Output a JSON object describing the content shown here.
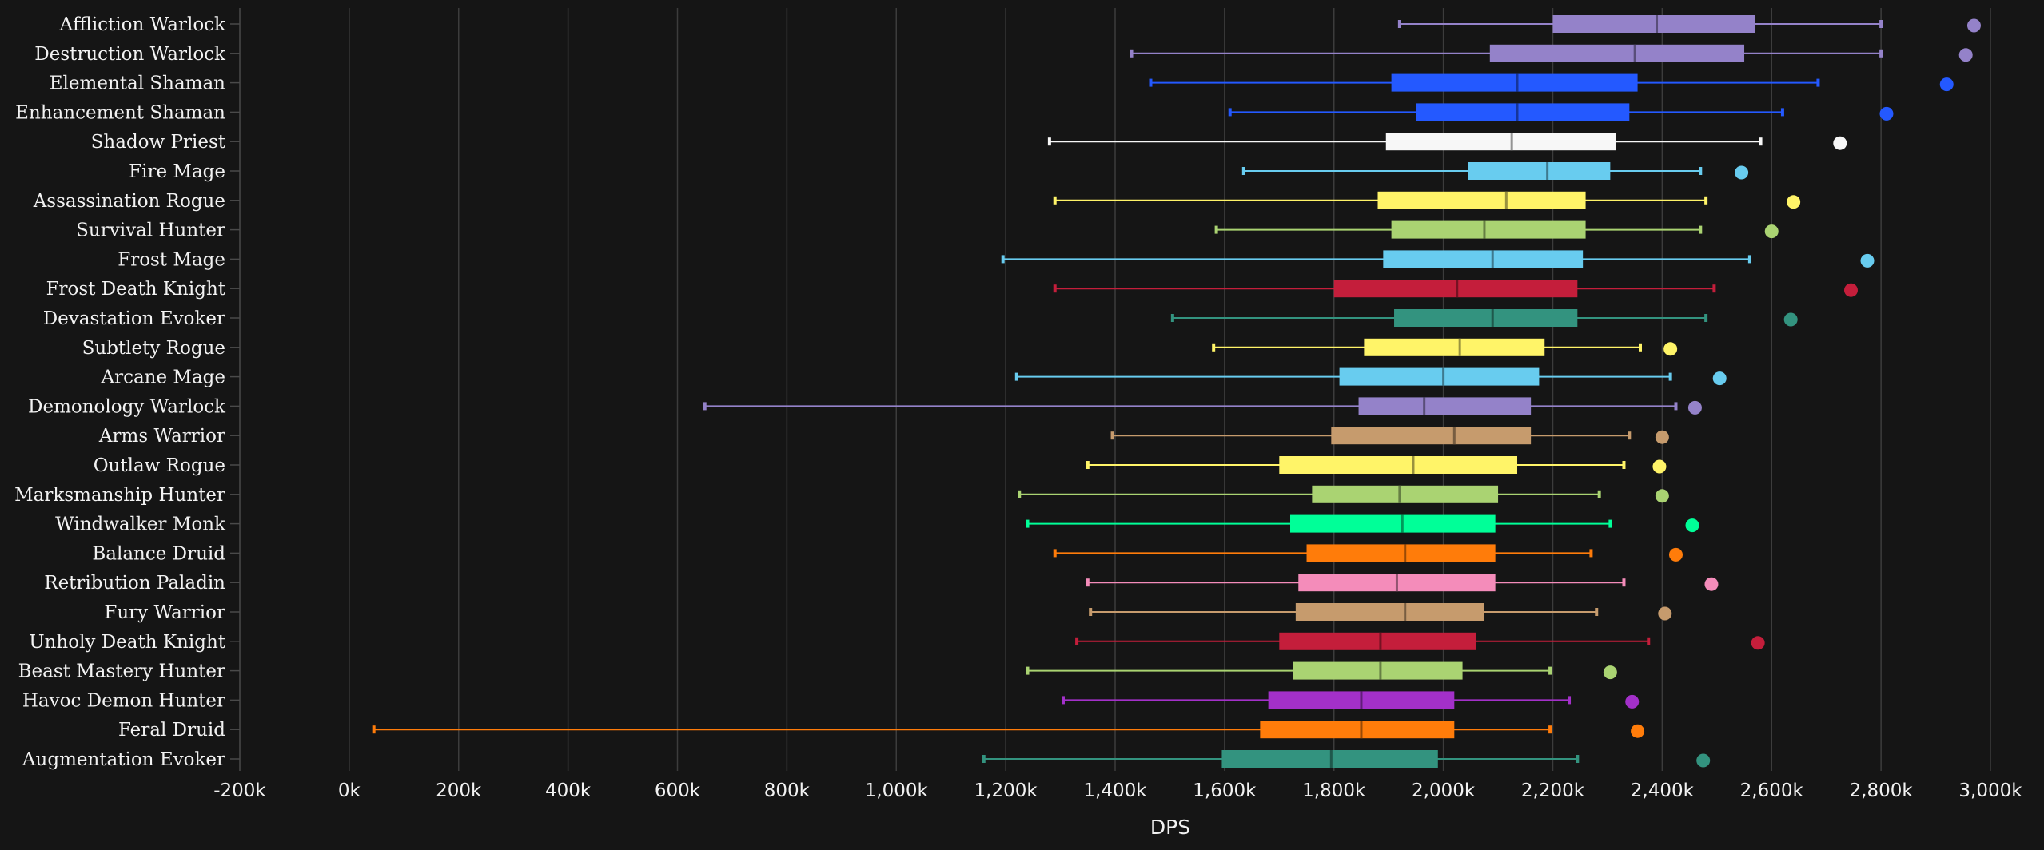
{
  "chart_data": {
    "type": "boxplot",
    "xlabel": "DPS",
    "xlim": [
      -200000,
      3000000
    ],
    "x_ticks": [
      -200000,
      0,
      200000,
      400000,
      600000,
      800000,
      1000000,
      1200000,
      1400000,
      1600000,
      1800000,
      2000000,
      2200000,
      2400000,
      2600000,
      2800000,
      3000000
    ],
    "x_tick_labels": [
      "-200k",
      "0k",
      "200k",
      "400k",
      "600k",
      "800k",
      "1,000k",
      "1,200k",
      "1,400k",
      "1,600k",
      "1,800k",
      "2,000k",
      "2,200k",
      "2,400k",
      "2,600k",
      "2,800k",
      "3,000k"
    ],
    "grid": true,
    "series": [
      {
        "name": "Affliction Warlock",
        "color": "#9482c9",
        "min": 1920000,
        "q1": 2200000,
        "median": 2390000,
        "q3": 2570000,
        "max": 2800000,
        "outlier": 2970000
      },
      {
        "name": "Destruction Warlock",
        "color": "#9482c9",
        "min": 1430000,
        "q1": 2085000,
        "median": 2350000,
        "q3": 2550000,
        "max": 2800000,
        "outlier": 2955000
      },
      {
        "name": "Elemental Shaman",
        "color": "#2459ff",
        "min": 1465000,
        "q1": 1905000,
        "median": 2135000,
        "q3": 2355000,
        "max": 2685000,
        "outlier": 2920000
      },
      {
        "name": "Enhancement Shaman",
        "color": "#2459ff",
        "min": 1610000,
        "q1": 1950000,
        "median": 2135000,
        "q3": 2340000,
        "max": 2620000,
        "outlier": 2810000
      },
      {
        "name": "Shadow Priest",
        "color": "#f7f7f7",
        "min": 1280000,
        "q1": 1895000,
        "median": 2125000,
        "q3": 2315000,
        "max": 2580000,
        "outlier": 2725000
      },
      {
        "name": "Fire Mage",
        "color": "#68ccef",
        "min": 1635000,
        "q1": 2045000,
        "median": 2190000,
        "q3": 2305000,
        "max": 2470000,
        "outlier": 2545000
      },
      {
        "name": "Assassination Rogue",
        "color": "#fff468",
        "min": 1290000,
        "q1": 1880000,
        "median": 2115000,
        "q3": 2260000,
        "max": 2480000,
        "outlier": 2640000
      },
      {
        "name": "Survival Hunter",
        "color": "#aad372",
        "min": 1585000,
        "q1": 1905000,
        "median": 2075000,
        "q3": 2260000,
        "max": 2470000,
        "outlier": 2600000
      },
      {
        "name": "Frost Mage",
        "color": "#68ccef",
        "min": 1195000,
        "q1": 1890000,
        "median": 2090000,
        "q3": 2255000,
        "max": 2560000,
        "outlier": 2775000
      },
      {
        "name": "Frost Death Knight",
        "color": "#c41e3b",
        "min": 1290000,
        "q1": 1800000,
        "median": 2025000,
        "q3": 2245000,
        "max": 2495000,
        "outlier": 2745000
      },
      {
        "name": "Devastation Evoker",
        "color": "#33937f",
        "min": 1505000,
        "q1": 1910000,
        "median": 2090000,
        "q3": 2245000,
        "max": 2480000,
        "outlier": 2635000
      },
      {
        "name": "Subtlety Rogue",
        "color": "#fff468",
        "min": 1580000,
        "q1": 1855000,
        "median": 2030000,
        "q3": 2185000,
        "max": 2360000,
        "outlier": 2415000
      },
      {
        "name": "Arcane Mage",
        "color": "#68ccef",
        "min": 1220000,
        "q1": 1810000,
        "median": 2000000,
        "q3": 2175000,
        "max": 2415000,
        "outlier": 2505000
      },
      {
        "name": "Demonology Warlock",
        "color": "#9482c9",
        "min": 650000,
        "q1": 1845000,
        "median": 1965000,
        "q3": 2160000,
        "max": 2425000,
        "outlier": 2460000
      },
      {
        "name": "Arms Warrior",
        "color": "#c69b6d",
        "min": 1395000,
        "q1": 1795000,
        "median": 2020000,
        "q3": 2160000,
        "max": 2340000,
        "outlier": 2400000
      },
      {
        "name": "Outlaw Rogue",
        "color": "#fff468",
        "min": 1350000,
        "q1": 1700000,
        "median": 1945000,
        "q3": 2135000,
        "max": 2330000,
        "outlier": 2395000
      },
      {
        "name": "Marksmanship Hunter",
        "color": "#aad372",
        "min": 1225000,
        "q1": 1760000,
        "median": 1920000,
        "q3": 2100000,
        "max": 2285000,
        "outlier": 2400000
      },
      {
        "name": "Windwalker Monk",
        "color": "#00ff98",
        "min": 1240000,
        "q1": 1720000,
        "median": 1925000,
        "q3": 2095000,
        "max": 2305000,
        "outlier": 2455000
      },
      {
        "name": "Balance Druid",
        "color": "#ff7c0a",
        "min": 1290000,
        "q1": 1750000,
        "median": 1930000,
        "q3": 2095000,
        "max": 2270000,
        "outlier": 2425000
      },
      {
        "name": "Retribution Paladin",
        "color": "#f48cba",
        "min": 1350000,
        "q1": 1735000,
        "median": 1915000,
        "q3": 2095000,
        "max": 2330000,
        "outlier": 2490000
      },
      {
        "name": "Fury Warrior",
        "color": "#c69b6d",
        "min": 1355000,
        "q1": 1730000,
        "median": 1930000,
        "q3": 2075000,
        "max": 2280000,
        "outlier": 2405000
      },
      {
        "name": "Unholy Death Knight",
        "color": "#c41e3b",
        "min": 1330000,
        "q1": 1700000,
        "median": 1885000,
        "q3": 2060000,
        "max": 2375000,
        "outlier": 2575000
      },
      {
        "name": "Beast Mastery Hunter",
        "color": "#aad372",
        "min": 1240000,
        "q1": 1725000,
        "median": 1885000,
        "q3": 2035000,
        "max": 2195000,
        "outlier": 2305000
      },
      {
        "name": "Havoc Demon Hunter",
        "color": "#a330c9",
        "min": 1305000,
        "q1": 1680000,
        "median": 1850000,
        "q3": 2020000,
        "max": 2230000,
        "outlier": 2345000
      },
      {
        "name": "Feral Druid",
        "color": "#ff7c0a",
        "min": 45000,
        "q1": 1665000,
        "median": 1850000,
        "q3": 2020000,
        "max": 2195000,
        "outlier": 2355000
      },
      {
        "name": "Augmentation Evoker",
        "color": "#33937f",
        "min": 1160000,
        "q1": 1595000,
        "median": 1795000,
        "q3": 1990000,
        "max": 2245000,
        "outlier": 2475000
      }
    ]
  }
}
